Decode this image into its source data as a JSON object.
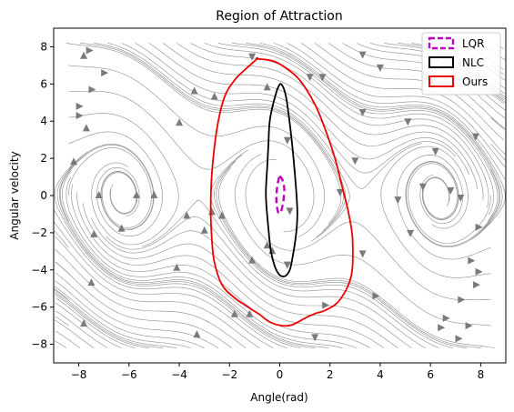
{
  "chart_data": {
    "type": "line",
    "title": "Region of Attraction",
    "xlabel": "Angle(rad)",
    "ylabel": "Angular velocity",
    "xlim": [
      -9,
      9
    ],
    "ylim": [
      -9,
      9
    ],
    "xticks": [
      -8,
      -6,
      -4,
      -2,
      0,
      2,
      4,
      6,
      8
    ],
    "yticks": [
      -8,
      -6,
      -4,
      -2,
      0,
      2,
      4,
      6,
      8
    ],
    "grid": false,
    "legend": "top-right",
    "background": "streamplot",
    "series": [
      {
        "name": "LQR",
        "color": "#bf00bf",
        "dash": "dashed",
        "x": [
          0.0,
          0.12,
          0.18,
          0.15,
          0.05,
          -0.06,
          -0.13,
          -0.12,
          -0.05,
          0.0
        ],
        "y": [
          1.05,
          0.8,
          0.35,
          -0.25,
          -0.85,
          -0.9,
          -0.35,
          0.25,
          0.85,
          1.05
        ]
      },
      {
        "name": "NLC",
        "color": "#000000",
        "dash": "solid",
        "x": [
          -0.1,
          0.05,
          0.25,
          0.45,
          0.6,
          0.7,
          0.65,
          0.5,
          0.4,
          0.25,
          0.1,
          -0.05,
          -0.2,
          -0.35,
          -0.45,
          -0.55,
          -0.5,
          -0.45,
          -0.4,
          -0.25,
          -0.1
        ],
        "y": [
          5.7,
          6.0,
          5.3,
          3.3,
          1.2,
          -0.8,
          -2.1,
          -3.4,
          -4.0,
          -4.3,
          -4.35,
          -4.2,
          -3.8,
          -3.0,
          -1.8,
          0.0,
          1.5,
          2.8,
          4.0,
          5.0,
          5.7
        ]
      },
      {
        "name": "Ours",
        "color": "#ee0000",
        "dash": "solid",
        "x": [
          -0.9,
          -0.3,
          0.2,
          0.8,
          1.4,
          1.8,
          2.2,
          2.5,
          2.75,
          2.9,
          2.85,
          2.4,
          1.85,
          1.4,
          1.0,
          0.5,
          0.1,
          -0.4,
          -0.8,
          -1.2,
          -1.8,
          -2.3,
          -2.6,
          -2.7,
          -2.75,
          -2.7,
          -2.5,
          -2.2,
          -1.8,
          -1.4,
          -0.9
        ],
        "y": [
          7.35,
          7.25,
          6.9,
          6.2,
          4.9,
          3.6,
          2.0,
          0.4,
          -1.0,
          -2.4,
          -4.3,
          -5.6,
          -6.15,
          -6.35,
          -6.6,
          -6.95,
          -7.0,
          -6.8,
          -6.4,
          -6.05,
          -5.5,
          -4.8,
          -3.6,
          -2.4,
          -0.8,
          1.2,
          3.6,
          5.3,
          6.2,
          6.75,
          7.35
        ]
      }
    ],
    "stream_arrows": [
      {
        "x": -7.6,
        "y": 7.8,
        "dir": "right"
      },
      {
        "x": -7.8,
        "y": 7.5,
        "dir": "up"
      },
      {
        "x": -8.0,
        "y": 4.8,
        "dir": "right"
      },
      {
        "x": -8.0,
        "y": 4.3,
        "dir": "right"
      },
      {
        "x": -7.5,
        "y": 5.7,
        "dir": "right"
      },
      {
        "x": -7.0,
        "y": 6.6,
        "dir": "right"
      },
      {
        "x": -7.7,
        "y": 3.6,
        "dir": "up"
      },
      {
        "x": -8.2,
        "y": 1.8,
        "dir": "up"
      },
      {
        "x": -7.2,
        "y": 0.0,
        "dir": "up"
      },
      {
        "x": -5.7,
        "y": 0.0,
        "dir": "up"
      },
      {
        "x": -5.0,
        "y": 0.0,
        "dir": "up"
      },
      {
        "x": -7.4,
        "y": -2.1,
        "dir": "up"
      },
      {
        "x": -6.3,
        "y": -1.8,
        "dir": "up"
      },
      {
        "x": -4.0,
        "y": 3.9,
        "dir": "up"
      },
      {
        "x": -3.4,
        "y": 5.6,
        "dir": "up"
      },
      {
        "x": -2.6,
        "y": 5.3,
        "dir": "up"
      },
      {
        "x": -3.7,
        "y": -1.1,
        "dir": "up"
      },
      {
        "x": -3.0,
        "y": -1.9,
        "dir": "up"
      },
      {
        "x": -2.7,
        "y": -0.9,
        "dir": "up"
      },
      {
        "x": -2.3,
        "y": -1.1,
        "dir": "up"
      },
      {
        "x": -4.1,
        "y": -3.9,
        "dir": "up"
      },
      {
        "x": -7.5,
        "y": -4.7,
        "dir": "up"
      },
      {
        "x": -7.8,
        "y": -6.9,
        "dir": "up"
      },
      {
        "x": -3.3,
        "y": -7.5,
        "dir": "up"
      },
      {
        "x": -1.8,
        "y": -6.4,
        "dir": "up"
      },
      {
        "x": -1.2,
        "y": -6.4,
        "dir": "up"
      },
      {
        "x": -1.1,
        "y": 7.5,
        "dir": "down"
      },
      {
        "x": -0.5,
        "y": 5.8,
        "dir": "up"
      },
      {
        "x": -1.1,
        "y": -3.5,
        "dir": "up"
      },
      {
        "x": -0.3,
        "y": -3.0,
        "dir": "up"
      },
      {
        "x": -0.5,
        "y": -2.7,
        "dir": "up"
      },
      {
        "x": 0.3,
        "y": -3.7,
        "dir": "down"
      },
      {
        "x": 0.4,
        "y": -0.8,
        "dir": "down"
      },
      {
        "x": 0.3,
        "y": 3.0,
        "dir": "down"
      },
      {
        "x": 1.2,
        "y": 6.4,
        "dir": "down"
      },
      {
        "x": 1.7,
        "y": 6.4,
        "dir": "down"
      },
      {
        "x": 1.8,
        "y": -5.9,
        "dir": "right"
      },
      {
        "x": 1.4,
        "y": -7.6,
        "dir": "down"
      },
      {
        "x": 2.4,
        "y": 0.2,
        "dir": "down"
      },
      {
        "x": 3.0,
        "y": 1.9,
        "dir": "down"
      },
      {
        "x": 3.3,
        "y": 4.5,
        "dir": "down"
      },
      {
        "x": 3.3,
        "y": 7.6,
        "dir": "down"
      },
      {
        "x": 4.0,
        "y": 6.9,
        "dir": "down"
      },
      {
        "x": 3.3,
        "y": -3.1,
        "dir": "down"
      },
      {
        "x": 3.8,
        "y": -5.4,
        "dir": "right"
      },
      {
        "x": 4.7,
        "y": -0.2,
        "dir": "down"
      },
      {
        "x": 5.1,
        "y": 4.0,
        "dir": "down"
      },
      {
        "x": 5.2,
        "y": -2.0,
        "dir": "down"
      },
      {
        "x": 5.7,
        "y": 0.5,
        "dir": "down"
      },
      {
        "x": 6.2,
        "y": 2.4,
        "dir": "down"
      },
      {
        "x": 6.8,
        "y": 0.3,
        "dir": "down"
      },
      {
        "x": 7.2,
        "y": -0.1,
        "dir": "down"
      },
      {
        "x": 7.8,
        "y": 3.2,
        "dir": "down"
      },
      {
        "x": 7.9,
        "y": -1.7,
        "dir": "right"
      },
      {
        "x": 7.6,
        "y": -3.5,
        "dir": "right"
      },
      {
        "x": 7.9,
        "y": -4.1,
        "dir": "right"
      },
      {
        "x": 7.8,
        "y": -4.8,
        "dir": "right"
      },
      {
        "x": 7.2,
        "y": -5.6,
        "dir": "right"
      },
      {
        "x": 6.6,
        "y": -6.6,
        "dir": "right"
      },
      {
        "x": 7.5,
        "y": -7.0,
        "dir": "right"
      },
      {
        "x": 6.4,
        "y": -7.1,
        "dir": "right"
      },
      {
        "x": 7.1,
        "y": -7.7,
        "dir": "right"
      }
    ]
  }
}
